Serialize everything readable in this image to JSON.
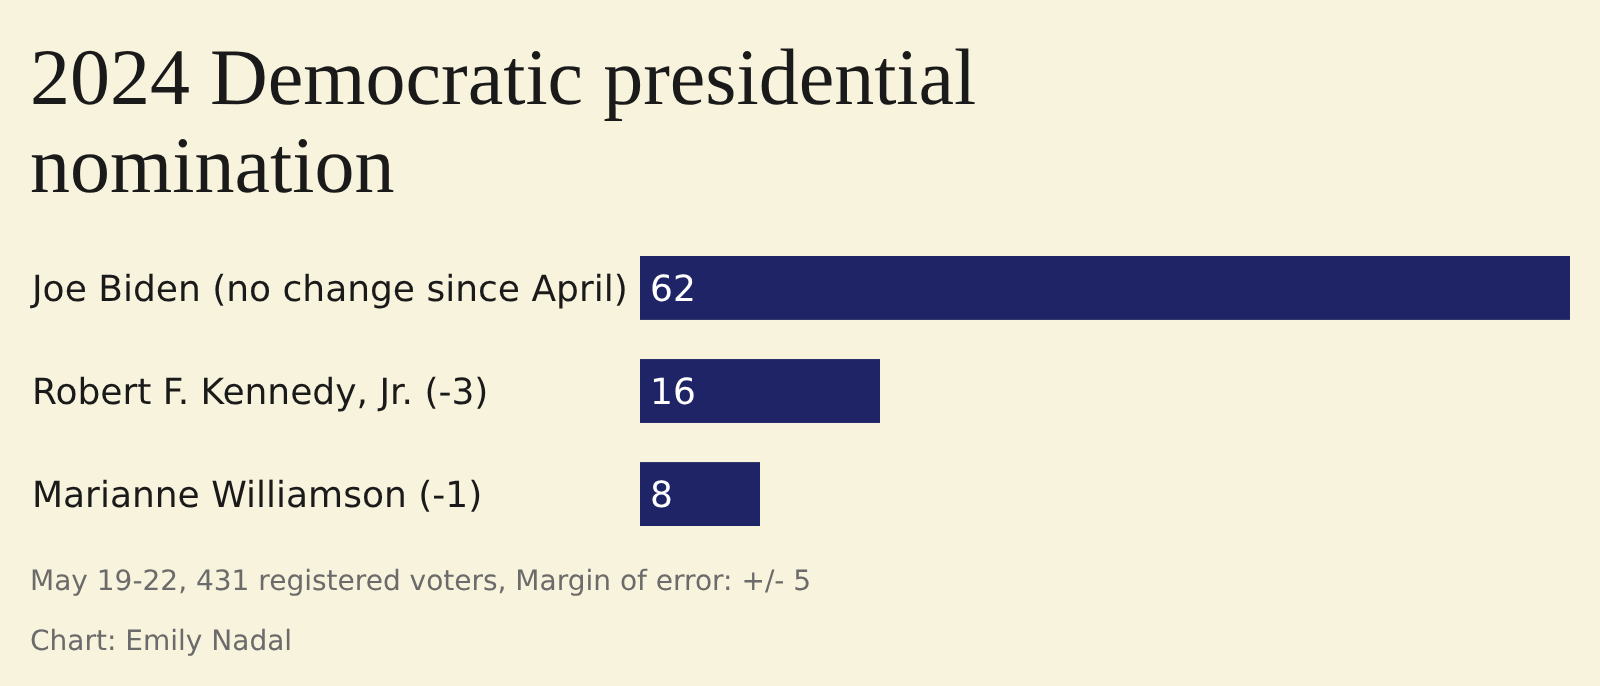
{
  "chart_data": {
    "type": "bar",
    "orientation": "horizontal",
    "title": "2024 Democratic presidential nomination",
    "categories": [
      "Joe Biden (no change since April)",
      "Robert F. Kennedy, Jr. (-3)",
      "Marianne Williamson (-1)"
    ],
    "values": [
      62,
      16,
      8
    ],
    "color": "#1f2466",
    "data_labels": true,
    "annotations": [
      "May 19-22, 431 registered voters, Margin of error: +/- 5",
      "Chart: Emily Nadal"
    ]
  }
}
